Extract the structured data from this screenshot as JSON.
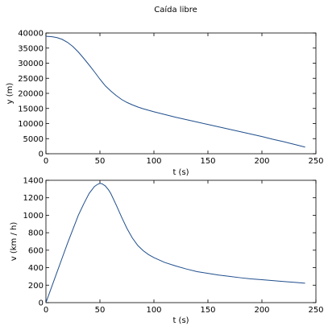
{
  "figure_title": "Caída libre",
  "line_color": "#1f4e8c",
  "chart_data": [
    {
      "type": "line",
      "title": "",
      "xlabel": "t (s)",
      "ylabel": "y (m)",
      "xlim": [
        0,
        250
      ],
      "ylim": [
        0,
        40000
      ],
      "xticks": [
        0,
        50,
        100,
        150,
        200,
        250
      ],
      "yticks": [
        0,
        5000,
        10000,
        15000,
        20000,
        25000,
        30000,
        35000,
        40000
      ],
      "grid": false,
      "series": [
        {
          "x": [
            0,
            5,
            10,
            15,
            20,
            25,
            30,
            35,
            40,
            45,
            50,
            55,
            60,
            65,
            70,
            75,
            80,
            85,
            90,
            95,
            100,
            110,
            120,
            130,
            140,
            150,
            160,
            170,
            180,
            190,
            200,
            210,
            220,
            230,
            240
          ],
          "values": [
            38900,
            38800,
            38500,
            37900,
            36900,
            35500,
            33700,
            31600,
            29400,
            27100,
            24700,
            22500,
            20800,
            19300,
            18000,
            17000,
            16200,
            15500,
            14900,
            14400,
            13900,
            13000,
            12100,
            11300,
            10500,
            9700,
            8900,
            8100,
            7300,
            6500,
            5700,
            4800,
            4000,
            3100,
            2200
          ]
        }
      ]
    },
    {
      "type": "line",
      "title": "",
      "xlabel": "t (s)",
      "ylabel": "v (km / h)",
      "xlim": [
        0,
        250
      ],
      "ylim": [
        0,
        1400
      ],
      "xticks": [
        0,
        50,
        100,
        150,
        200,
        250
      ],
      "yticks": [
        0,
        200,
        400,
        600,
        800,
        1000,
        1200,
        1400
      ],
      "grid": false,
      "series": [
        {
          "x": [
            0,
            5,
            10,
            15,
            20,
            25,
            30,
            35,
            40,
            45,
            48,
            50,
            52,
            55,
            58,
            60,
            65,
            70,
            75,
            80,
            85,
            90,
            95,
            100,
            110,
            120,
            130,
            140,
            150,
            160,
            170,
            180,
            190,
            200,
            210,
            220,
            230,
            240
          ],
          "values": [
            0,
            170,
            340,
            510,
            680,
            840,
            1000,
            1130,
            1250,
            1330,
            1355,
            1365,
            1360,
            1335,
            1290,
            1250,
            1120,
            980,
            850,
            740,
            655,
            595,
            550,
            515,
            460,
            420,
            385,
            355,
            335,
            315,
            300,
            285,
            272,
            262,
            252,
            242,
            232,
            222
          ]
        }
      ]
    }
  ]
}
